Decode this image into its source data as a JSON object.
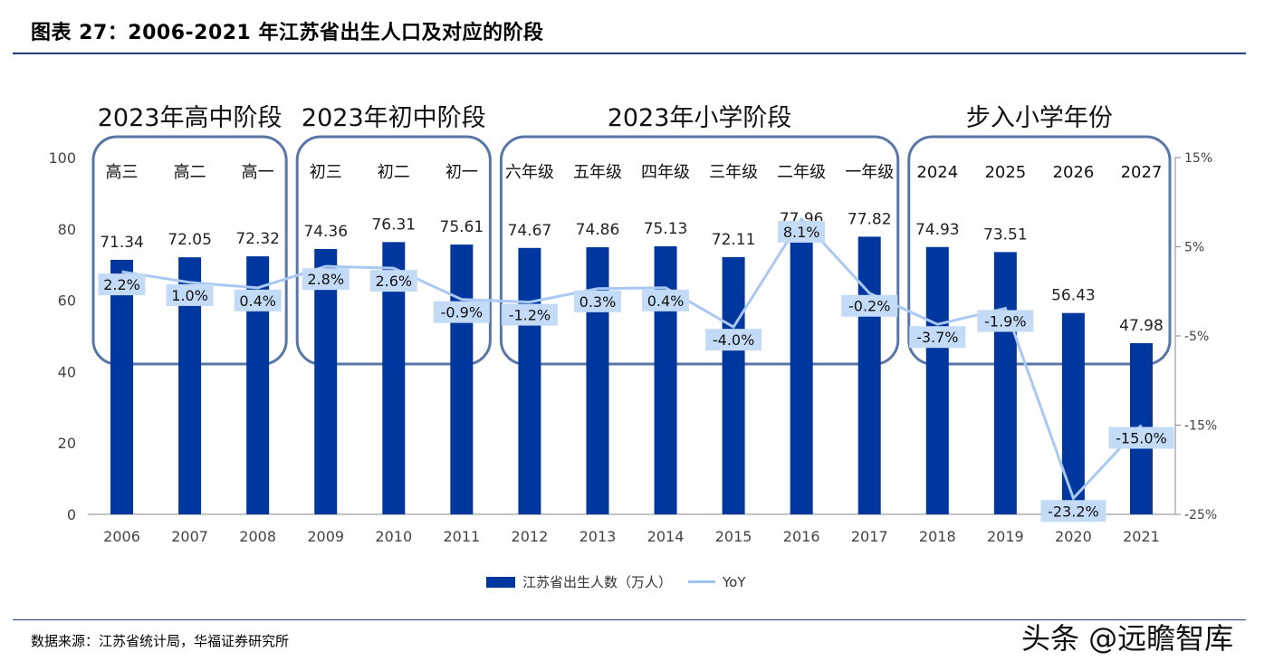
{
  "figure": {
    "title": "图表 27：2006-2021 年江苏省出生人口及对应的阶段",
    "source": "数据来源：江苏省统计局，华福证券研究所",
    "watermark": "头条 @远瞻智库"
  },
  "colors": {
    "bar": "#00379e",
    "line": "#a9c9f3",
    "label_bg": "#c3dbf7",
    "box": "#5877a8"
  },
  "chart_data": {
    "type": "bar",
    "categories": [
      "2006",
      "2007",
      "2008",
      "2009",
      "2010",
      "2011",
      "2012",
      "2013",
      "2014",
      "2015",
      "2016",
      "2017",
      "2018",
      "2019",
      "2020",
      "2021"
    ],
    "series": [
      {
        "name": "江苏省出生人数（万人）",
        "type": "bar",
        "axis": "left",
        "values": [
          71.34,
          72.05,
          72.32,
          74.36,
          76.31,
          75.61,
          74.67,
          74.86,
          75.13,
          72.11,
          77.96,
          77.82,
          74.93,
          73.51,
          56.43,
          47.98
        ],
        "labels": [
          "71.34",
          "72.05",
          "72.32",
          "74.36",
          "76.31",
          "75.61",
          "74.67",
          "74.86",
          "75.13",
          "72.11",
          "77.96",
          "77.82",
          "74.93",
          "73.51",
          "56.43",
          "47.98"
        ]
      },
      {
        "name": "YoY",
        "type": "line",
        "axis": "right",
        "values": [
          2.2,
          1.0,
          0.4,
          2.8,
          2.6,
          -0.9,
          -1.2,
          0.3,
          0.4,
          -4.0,
          8.1,
          -0.2,
          -3.7,
          -1.9,
          -23.2,
          -15.0
        ],
        "labels": [
          "2.2%",
          "1.0%",
          "0.4%",
          "2.8%",
          "2.6%",
          "-0.9%",
          "-1.2%",
          "0.3%",
          "0.4%",
          "-4.0%",
          "8.1%",
          "-0.2%",
          "-3.7%",
          "-1.9%",
          "-23.2%",
          "-15.0%"
        ]
      }
    ],
    "ylim_left": [
      0,
      100
    ],
    "yticks_left": [
      "0",
      "20",
      "40",
      "60",
      "80",
      "100"
    ],
    "ylim_right": [
      -25,
      15
    ],
    "yticks_right": [
      "-25%",
      "-15%",
      "-5%",
      "5%",
      "15%"
    ],
    "legend": {
      "position": "bottom",
      "items": [
        "江苏省出生人数（万人）",
        "YoY"
      ]
    },
    "stage_groups": [
      {
        "title": "2023年高中阶段",
        "start": 0,
        "end": 2,
        "labels": [
          "高三",
          "高二",
          "高一"
        ]
      },
      {
        "title": "2023年初中阶段",
        "start": 3,
        "end": 5,
        "labels": [
          "初三",
          "初二",
          "初一"
        ]
      },
      {
        "title": "2023年小学阶段",
        "start": 6,
        "end": 11,
        "labels": [
          "六年级",
          "五年级",
          "四年级",
          "三年级",
          "二年级",
          "一年级"
        ]
      },
      {
        "title": "步入小学年份",
        "start": 12,
        "end": 15,
        "labels": [
          "2024",
          "2025",
          "2026",
          "2027"
        ]
      }
    ]
  }
}
